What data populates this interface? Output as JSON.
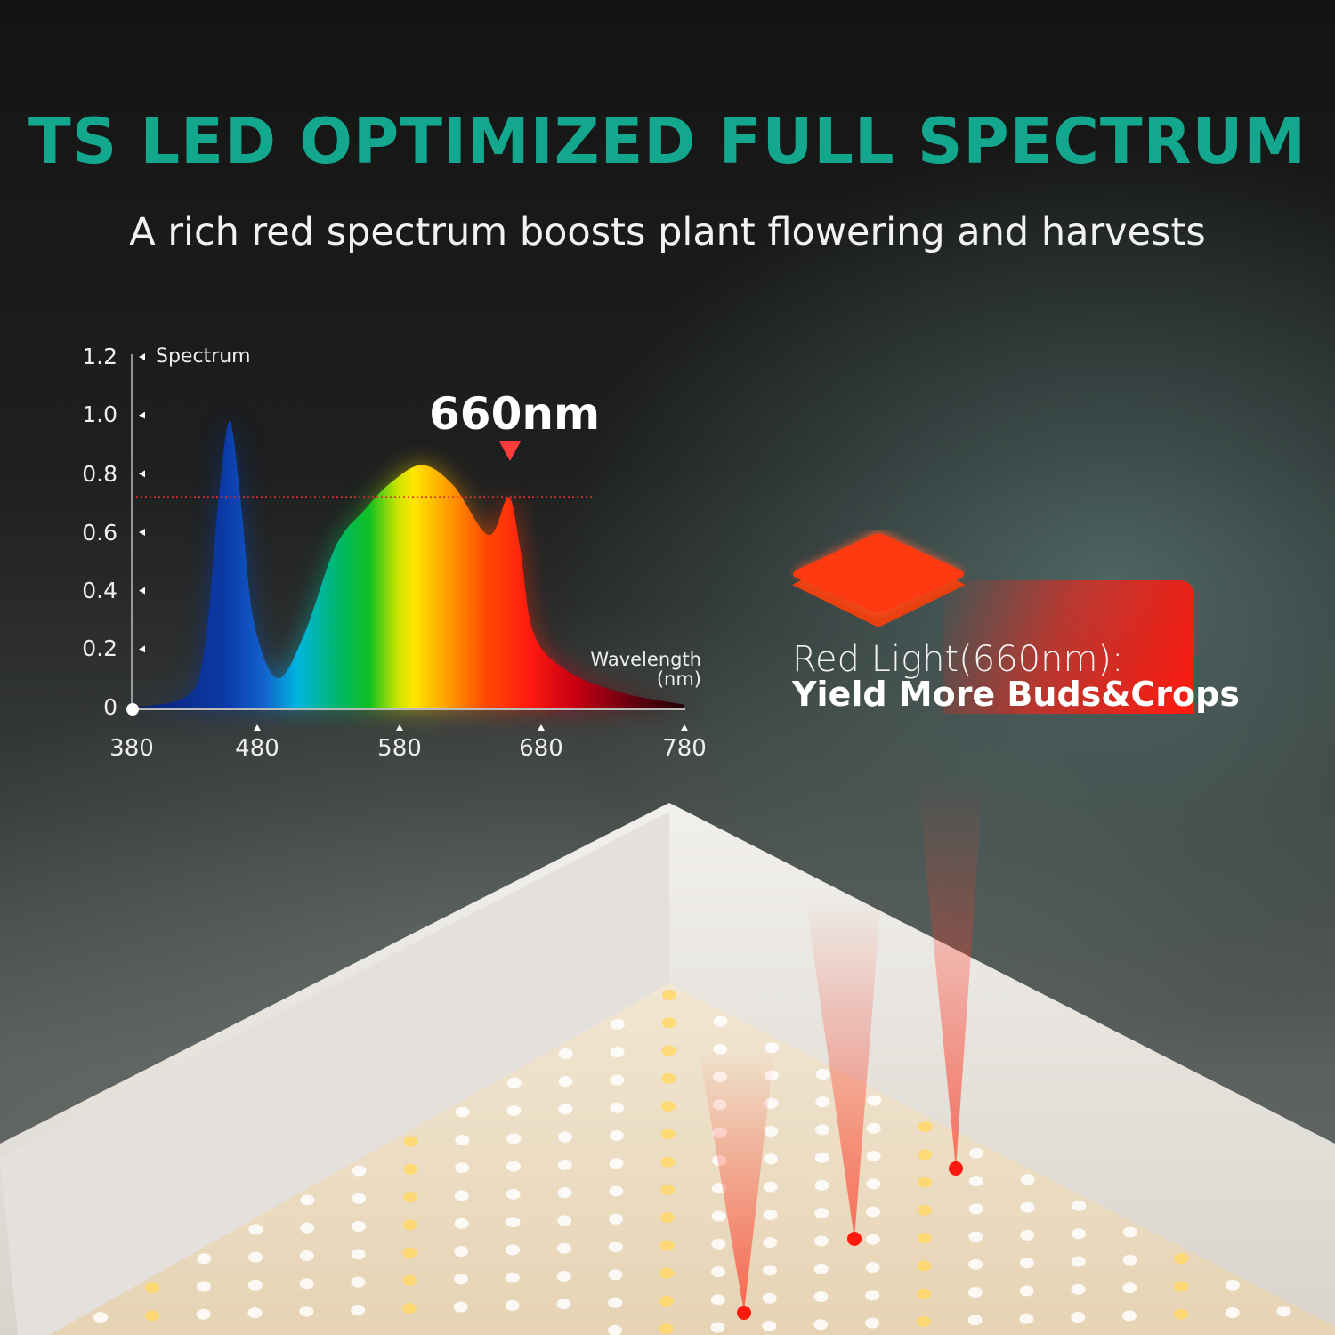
{
  "header": {
    "title": "TS LED OPTIMIZED FULL SPECTRUM",
    "subtitle": "A rich red spectrum boosts plant flowering and harvests"
  },
  "colors": {
    "title": "#13a88e",
    "red_light": "#ff1a10",
    "background": "#1e1f1f"
  },
  "chart_data": {
    "type": "area",
    "title": "",
    "xlabel": "Wavelength (nm)",
    "xlabel_lines": [
      "Wavelength",
      "(nm)"
    ],
    "ylabel": "Spectrum",
    "xlim": [
      380,
      780
    ],
    "ylim": [
      0,
      1.2
    ],
    "xticks": [
      "380",
      "480",
      "580",
      "680",
      "780"
    ],
    "yticks": [
      "0",
      "0.2",
      "0.4",
      "0.6",
      "0.8",
      "1.0",
      "1.2"
    ],
    "grid": false,
    "fill": "visible-spectrum gradient (blue to deep red)",
    "series": [
      {
        "x": [
          380,
          424,
          438,
          449,
          458,
          467,
          477,
          494,
          513,
          535,
          556,
          574,
          596,
          618,
          643,
          657,
          665,
          675,
          700,
          737,
          780
        ],
        "y": [
          0.0,
          0.04,
          0.2,
          0.7,
          0.98,
          0.7,
          0.3,
          0.1,
          0.25,
          0.55,
          0.68,
          0.77,
          0.83,
          0.76,
          0.59,
          0.72,
          0.55,
          0.25,
          0.12,
          0.05,
          0.01
        ]
      }
    ],
    "reference_line": {
      "y": 0.72,
      "style": "dotted",
      "color": "#e03030"
    },
    "annotation": {
      "text": "660nm",
      "x": 660,
      "marker": "down-triangle",
      "color": "#ff3b3b"
    }
  },
  "callout": {
    "line1": "Red Light(660nm):",
    "line2": "Yield More Buds&Crops"
  }
}
